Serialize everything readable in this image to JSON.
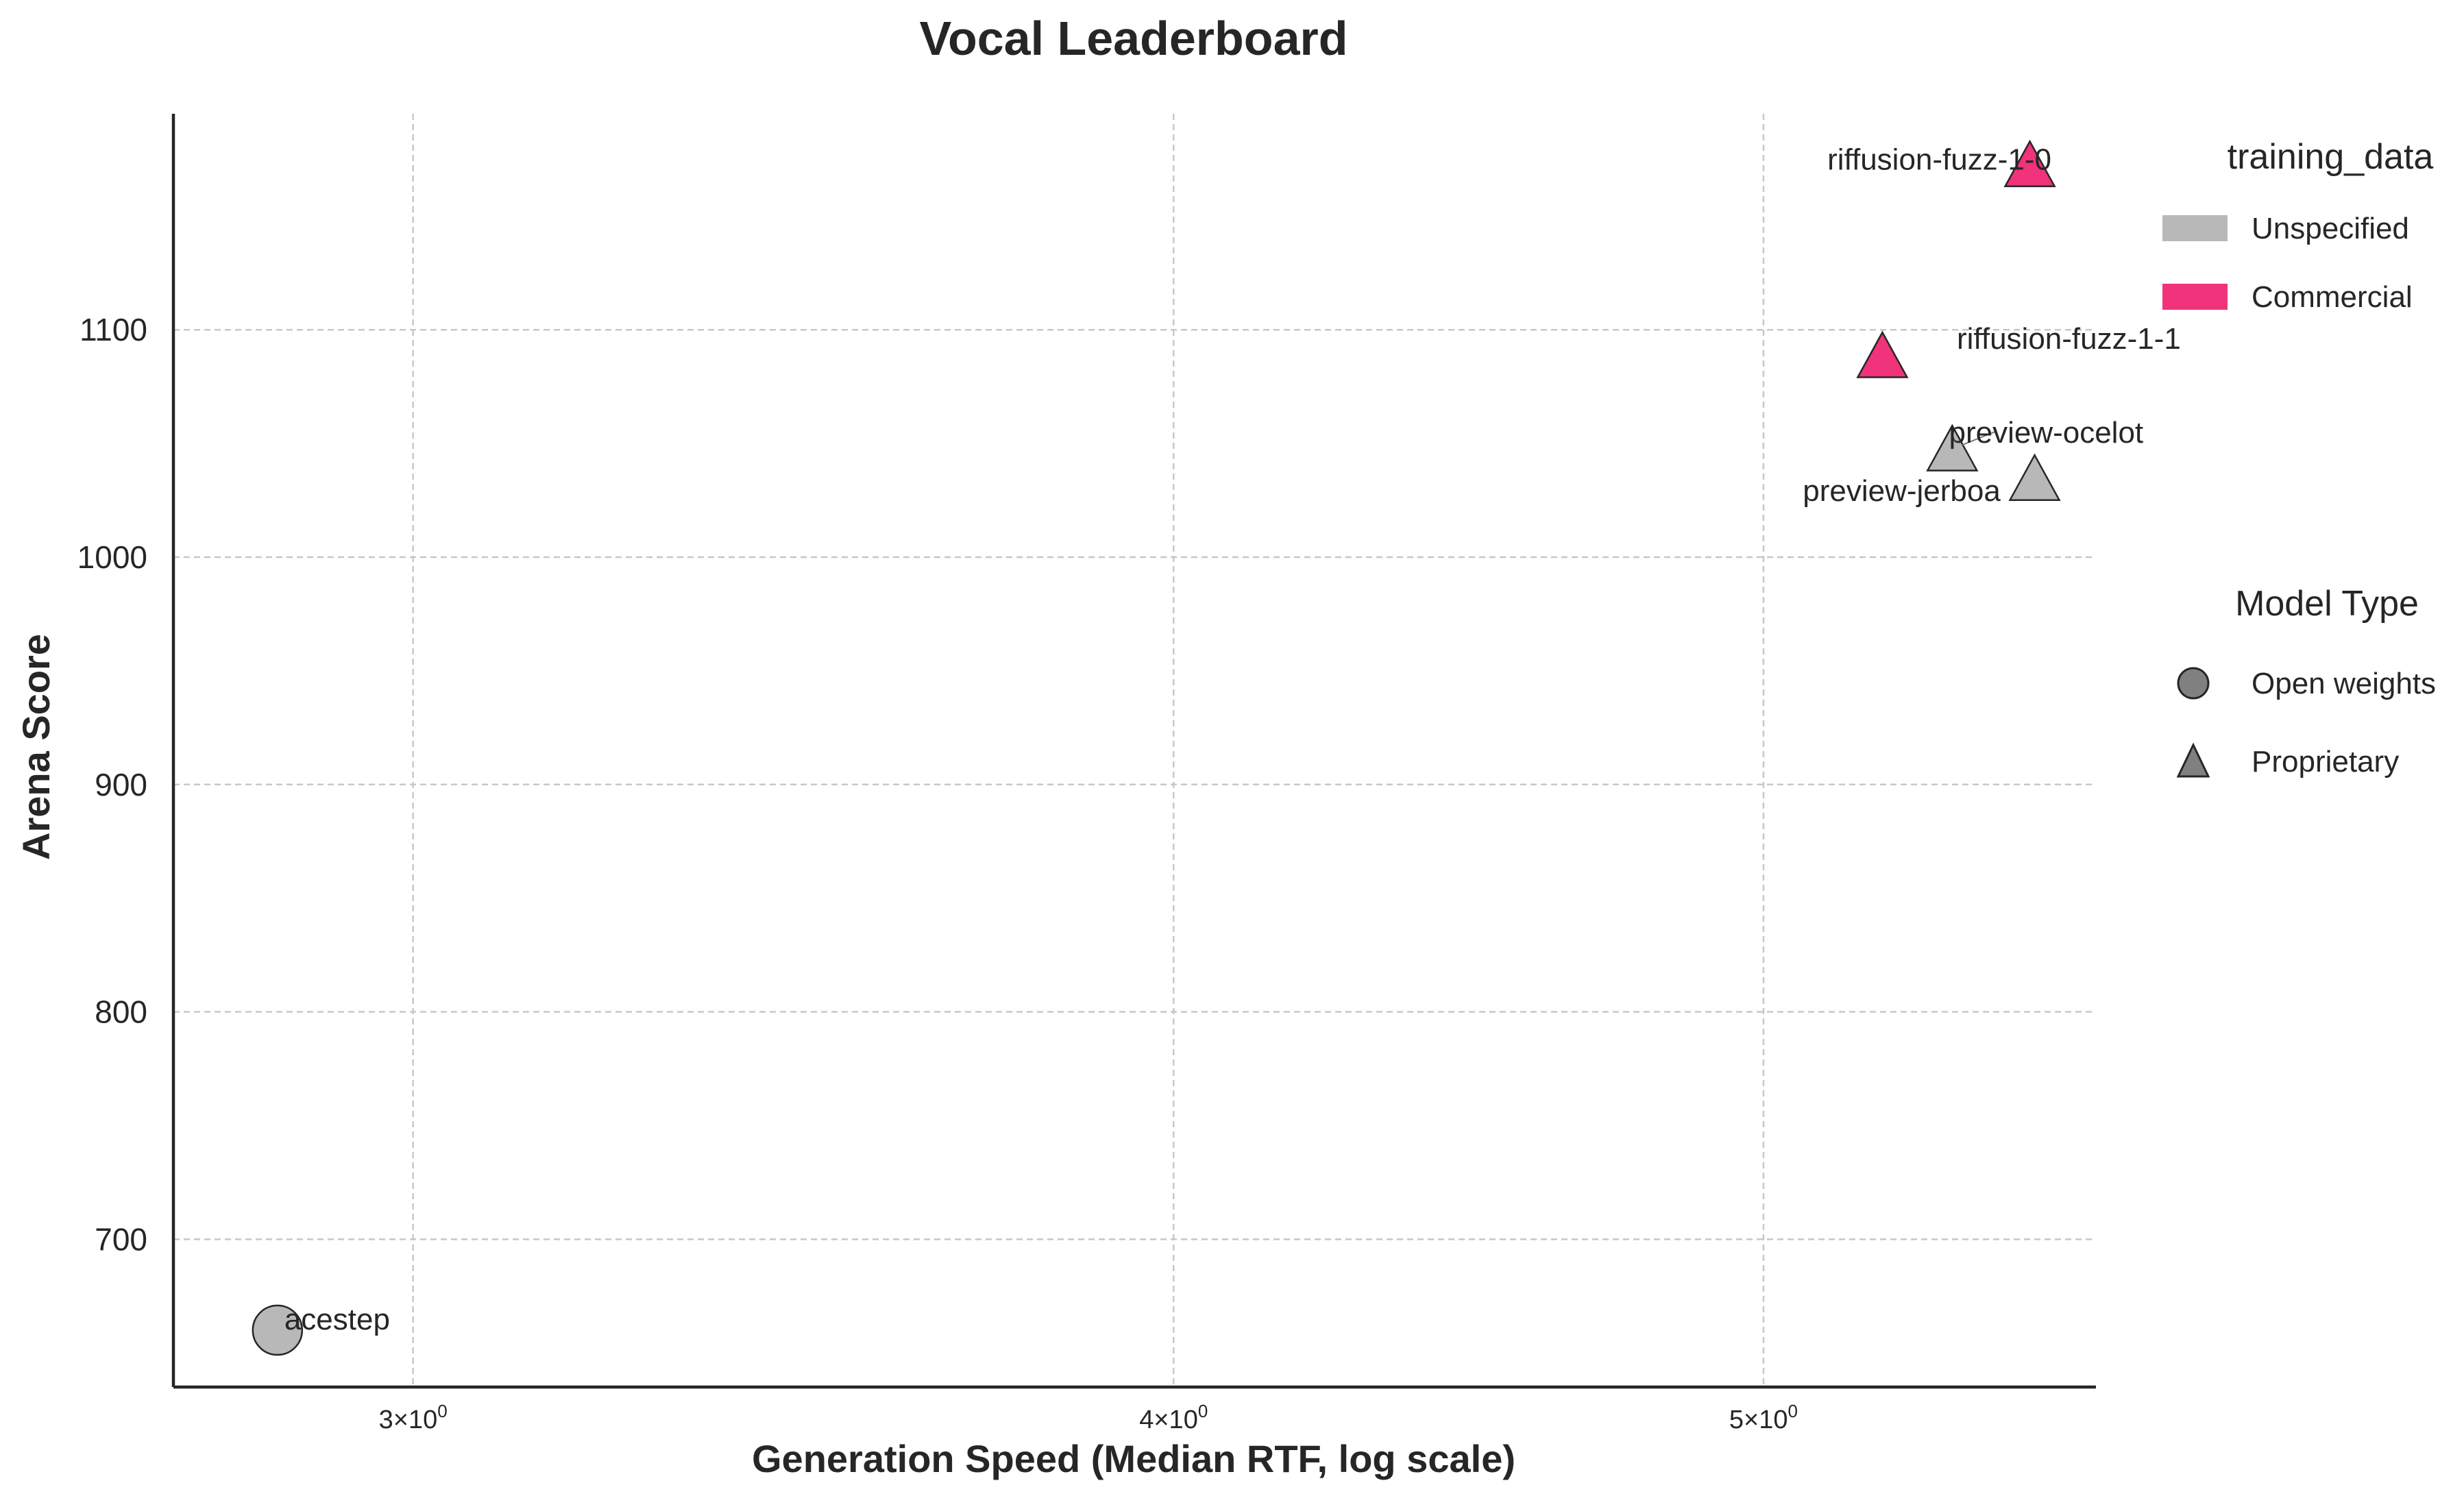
{
  "chart_data": {
    "type": "scatter",
    "title": "Vocal Leaderboard",
    "xlabel": "Generation Speed (Median RTF, log scale)",
    "ylabel": "Arena Score",
    "xscale": "log",
    "xlim": [
      2.74,
      5.67
    ],
    "ylim": [
      635,
      1195
    ],
    "xticks": [
      {
        "value": 3,
        "label": "3×10",
        "exp": "0"
      },
      {
        "value": 4,
        "label": "4×10",
        "exp": "0"
      },
      {
        "value": 5,
        "label": "5×10",
        "exp": "0"
      }
    ],
    "yticks": [
      700,
      800,
      900,
      1000,
      1100
    ],
    "grid": true,
    "points": [
      {
        "label": "acestep",
        "x": 2.85,
        "y": 660,
        "training_data": "Unspecified",
        "model_type": "Open weights"
      },
      {
        "label": "riffusion-fuzz-1-0",
        "x": 5.53,
        "y": 1172,
        "training_data": "Commercial",
        "model_type": "Proprietary"
      },
      {
        "label": "riffusion-fuzz-1-1",
        "x": 5.23,
        "y": 1088,
        "training_data": "Commercial",
        "model_type": "Proprietary"
      },
      {
        "label": "preview-ocelot",
        "x": 5.37,
        "y": 1047,
        "training_data": "Unspecified",
        "model_type": "Proprietary"
      },
      {
        "label": "preview-jerboa",
        "x": 5.54,
        "y": 1034,
        "training_data": "Unspecified",
        "model_type": "Proprietary"
      }
    ],
    "legends": [
      {
        "title": "training_data",
        "placement": "right",
        "entries": [
          {
            "label": "Unspecified",
            "color": "#b8b8b8"
          },
          {
            "label": "Commercial",
            "color": "#f0337a"
          }
        ]
      },
      {
        "title": "Model Type",
        "placement": "right",
        "entries": [
          {
            "label": "Open weights",
            "marker": "circle"
          },
          {
            "label": "Proprietary",
            "marker": "triangle"
          }
        ]
      }
    ]
  }
}
